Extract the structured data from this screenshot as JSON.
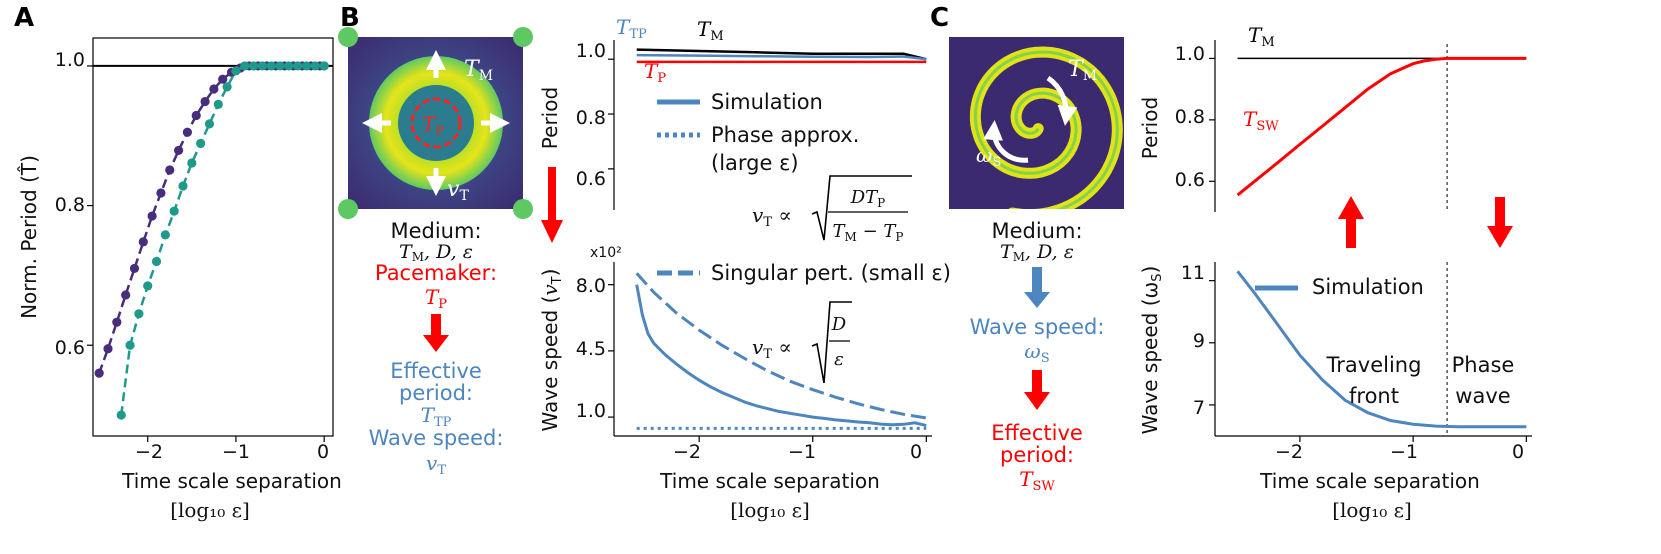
{
  "panels": {
    "a": "A",
    "b": "B",
    "c": "C"
  },
  "chart_data": [
    {
      "id": "panel-a",
      "type": "line",
      "ylabel": "Norm. Period (T̂)",
      "xlabel_line1": "Time scale separation",
      "xlabel_line2": "[log₁₀ ε]",
      "xlim": [
        -2.62,
        0.1
      ],
      "ylim": [
        0.47,
        1.04
      ],
      "xticks": [
        -2,
        -1,
        0
      ],
      "xtick_labels": [
        "−2",
        "−1",
        "0"
      ],
      "yticks": [
        0.6,
        0.8,
        1.0
      ],
      "ytick_labels": [
        "0.6",
        "0.8",
        "1.0"
      ],
      "hline": 1.0,
      "series": [
        {
          "name": "purple",
          "color": "#472d7b",
          "x": [
            -2.55,
            -2.45,
            -2.35,
            -2.25,
            -2.15,
            -2.05,
            -1.95,
            -1.85,
            -1.75,
            -1.65,
            -1.55,
            -1.45,
            -1.35,
            -1.25,
            -1.15,
            -1.05,
            -0.95,
            -0.85,
            -0.75,
            -0.65,
            -0.55,
            -0.45,
            -0.35,
            -0.25,
            -0.15,
            -0.05,
            0.0
          ],
          "y": [
            0.56,
            0.595,
            0.633,
            0.672,
            0.71,
            0.748,
            0.785,
            0.818,
            0.851,
            0.879,
            0.905,
            0.929,
            0.949,
            0.967,
            0.981,
            0.991,
            0.997,
            1.0,
            1.0,
            1.0,
            1.0,
            1.0,
            1.0,
            1.0,
            1.0,
            1.0,
            1.0
          ]
        },
        {
          "name": "teal",
          "color": "#1f9a8a",
          "x": [
            -2.3,
            -2.2,
            -2.1,
            -2.0,
            -1.9,
            -1.8,
            -1.7,
            -1.6,
            -1.5,
            -1.4,
            -1.3,
            -1.2,
            -1.1,
            -1.0,
            -0.9,
            -0.8,
            -0.7,
            -0.6,
            -0.5,
            -0.4,
            -0.3,
            -0.2,
            -0.1,
            0.0
          ],
          "y": [
            0.5,
            0.6,
            0.645,
            0.685,
            0.72,
            0.758,
            0.792,
            0.828,
            0.861,
            0.889,
            0.917,
            0.945,
            0.97,
            0.993,
            1.0,
            1.0,
            1.0,
            1.0,
            1.0,
            1.0,
            1.0,
            1.0,
            1.0,
            1.0
          ]
        }
      ]
    },
    {
      "id": "panel-b-top",
      "type": "line",
      "ylabel": "Period",
      "xlim": [
        -2.75,
        0.05
      ],
      "ylim": [
        0.45,
        1.07
      ],
      "yticks": [
        0.6,
        0.8,
        1.0
      ],
      "ytick_labels": [
        "0.6",
        "0.8",
        "1.0"
      ],
      "series": [
        {
          "name": "T_M",
          "color": "#000000",
          "x": [
            -2.55,
            -2.0,
            -1.5,
            -1.0,
            -0.5,
            -0.2,
            0.0
          ],
          "y": [
            1.035,
            1.03,
            1.025,
            1.02,
            1.02,
            1.02,
            1.0
          ]
        },
        {
          "name": "T_TP",
          "color": "#4d85be",
          "x": [
            -2.55,
            -2.0,
            -1.5,
            -1.0,
            -0.5,
            -0.2,
            0.0
          ],
          "y": [
            1.015,
            1.013,
            1.011,
            1.009,
            1.008,
            1.01,
            1.0
          ]
        },
        {
          "name": "T_P",
          "color": "#ff0000",
          "x": [
            -2.55,
            0.0
          ],
          "y": [
            0.99,
            0.99
          ]
        }
      ],
      "labels": {
        "T_TP": "T",
        "T_TP_sub": "TP",
        "T_M": "T",
        "T_M_sub": "M",
        "T_P": "T",
        "T_P_sub": "P"
      }
    },
    {
      "id": "panel-b-bottom",
      "type": "line",
      "ylabel": "Wave speed (vT)",
      "xlabel_line1": "Time scale separation",
      "xlabel_line2": "[log₁₀ ε]",
      "multiplier": "x10²",
      "xlim": [
        -2.75,
        0.05
      ],
      "ylim": [
        0.0,
        9.2
      ],
      "xticks": [
        -2,
        -1,
        0
      ],
      "xtick_labels": [
        "−2",
        "−1",
        "0"
      ],
      "yticks": [
        1.0,
        4.5,
        8.0
      ],
      "ytick_labels": [
        "1.0",
        "4.5",
        "8.0"
      ],
      "series": [
        {
          "name": "Simulation",
          "style": "solid",
          "color": "#4d85be",
          "x": [
            -2.55,
            -2.5,
            -2.45,
            -2.4,
            -2.3,
            -2.2,
            -2.1,
            -2.0,
            -1.9,
            -1.8,
            -1.7,
            -1.6,
            -1.5,
            -1.4,
            -1.3,
            -1.2,
            -1.1,
            -1.0,
            -0.9,
            -0.8,
            -0.7,
            -0.6,
            -0.5,
            -0.4,
            -0.3,
            -0.2,
            -0.1,
            0.0
          ],
          "y": [
            8.0,
            6.4,
            5.4,
            4.9,
            4.3,
            3.8,
            3.35,
            2.95,
            2.6,
            2.3,
            2.05,
            1.8,
            1.6,
            1.45,
            1.3,
            1.2,
            1.1,
            1.0,
            0.93,
            0.85,
            0.8,
            0.74,
            0.7,
            0.63,
            0.6,
            0.62,
            0.7,
            0.55
          ]
        },
        {
          "name": "Phase approx.",
          "style": "dotted",
          "color": "#4d85be",
          "x": [
            -2.55,
            0.0
          ],
          "y": [
            0.4,
            0.4
          ]
        },
        {
          "name": "Singular pert.",
          "style": "dashed",
          "color": "#4d85be",
          "x": [
            -2.55,
            -2.4,
            -2.2,
            -2.0,
            -1.8,
            -1.6,
            -1.4,
            -1.2,
            -1.0,
            -0.8,
            -0.6,
            -0.4,
            -0.2,
            0.0
          ],
          "y": [
            8.6,
            7.6,
            6.5,
            5.6,
            4.8,
            4.1,
            3.45,
            2.9,
            2.45,
            2.05,
            1.7,
            1.4,
            1.15,
            0.95
          ]
        }
      ],
      "legend": [
        "Simulation",
        "Phase approx.",
        "(large ε)",
        "Singular pert. (small ε)"
      ],
      "formula1": {
        "lhs": "vT ∝",
        "num": "DTP",
        "den": "TM − TP"
      },
      "formula2": {
        "lhs": "vT ∝",
        "num": "D",
        "den": "ε"
      }
    },
    {
      "id": "panel-c-top",
      "type": "line",
      "ylabel": "Period",
      "xlim": [
        -2.75,
        0.05
      ],
      "ylim": [
        0.5,
        1.06
      ],
      "yticks": [
        0.6,
        0.8,
        1.0
      ],
      "ytick_labels": [
        "0.6",
        "0.8",
        "1.0"
      ],
      "vline": -0.7,
      "series": [
        {
          "name": "T_M",
          "color": "#000000",
          "x": [
            -2.55,
            0.0
          ],
          "y": [
            1.0,
            1.0
          ]
        },
        {
          "name": "T_SW",
          "color": "#ff0000",
          "x": [
            -2.55,
            -2.4,
            -2.2,
            -2.0,
            -1.8,
            -1.6,
            -1.4,
            -1.2,
            -1.0,
            -0.9,
            -0.8,
            -0.7,
            -0.6,
            -0.4,
            -0.2,
            0.0
          ],
          "y": [
            0.555,
            0.6,
            0.66,
            0.72,
            0.78,
            0.84,
            0.9,
            0.95,
            0.983,
            0.992,
            0.997,
            1.0,
            1.0,
            1.0,
            1.0,
            1.0
          ]
        }
      ],
      "labels": {
        "T_M": "T",
        "T_M_sub": "M",
        "T_SW": "T",
        "T_SW_sub": "SW"
      }
    },
    {
      "id": "panel-c-bottom",
      "type": "line",
      "ylabel": "Wave speed (ωS)",
      "xlabel_line1": "Time scale separation",
      "xlabel_line2": "[log₁₀ ε]",
      "xlim": [
        -2.75,
        0.05
      ],
      "ylim": [
        6.0,
        11.6
      ],
      "xticks": [
        -2,
        -1,
        0
      ],
      "xtick_labels": [
        "−2",
        "−1",
        "0"
      ],
      "yticks": [
        7,
        9,
        11
      ],
      "ytick_labels": [
        "7",
        "9",
        "11"
      ],
      "vline": -0.7,
      "series": [
        {
          "name": "Simulation",
          "color": "#4d85be",
          "x": [
            -2.55,
            -2.4,
            -2.2,
            -2.0,
            -1.8,
            -1.6,
            -1.4,
            -1.2,
            -1.0,
            -0.8,
            -0.6,
            -0.4,
            -0.2,
            0.0
          ],
          "y": [
            11.3,
            10.6,
            9.6,
            8.6,
            7.8,
            7.15,
            6.75,
            6.5,
            6.38,
            6.32,
            6.3,
            6.3,
            6.3,
            6.3
          ]
        }
      ],
      "legend": [
        "Simulation"
      ],
      "annotations": {
        "left1": "Traveling",
        "left2": "front",
        "right1": "Phase",
        "right2": "wave"
      }
    }
  ],
  "panel_b_text": {
    "medium": "Medium:",
    "medium_params": "TM, D, ε",
    "pacemaker": "Pacemaker:",
    "pacemaker_param": "TP",
    "effective1": "Effective",
    "effective2": "period:",
    "effective_param": "TTP",
    "wavespeed": "Wave speed:",
    "wavespeed_param": "vT",
    "img_TM": "TM",
    "img_TP": "TP",
    "img_vT": "vT"
  },
  "panel_c_text": {
    "medium": "Medium:",
    "medium_params": "TM, D, ε",
    "wavespeed": "Wave speed:",
    "wavespeed_param": "ωS",
    "effective1": "Effective",
    "effective2": "period:",
    "effective_param": "TSW",
    "img_TM": "TM",
    "img_wS": "ωS"
  },
  "colors": {
    "blue": "#4d85be",
    "red": "#ff0000",
    "purple": "#472d7b",
    "teal": "#1f9a8a",
    "yellow": "#dfe318",
    "navy": "#3b2a73"
  }
}
